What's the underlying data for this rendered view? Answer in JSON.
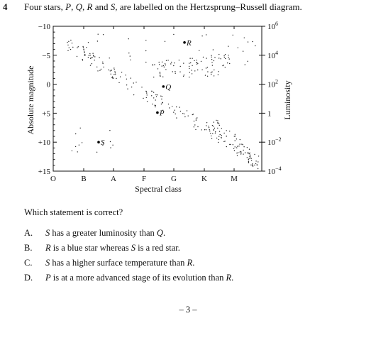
{
  "question": {
    "number": "4",
    "text_html": "Four stars, <i>P</i>, <i>Q</i>, <i>R</i> and <i>S</i>, are labelled on the Hertzsprung–Russell diagram."
  },
  "diagram": {
    "ylabel_left": "Absolute magnitude",
    "ylabel_right": "Luminosity",
    "xlabel": "Spectral class",
    "left_ticks": [
      "−10",
      "−5",
      "0",
      "+5",
      "+10",
      "+15"
    ],
    "right_ticks": [
      {
        "base": "10",
        "exp": "6"
      },
      {
        "base": "10",
        "exp": "4"
      },
      {
        "base": "10",
        "exp": "2"
      },
      {
        "base": "1",
        "exp": ""
      },
      {
        "base": "10",
        "exp": "−2"
      },
      {
        "base": "10",
        "exp": "−4"
      }
    ],
    "spectral_classes": [
      "O",
      "B",
      "A",
      "F",
      "G",
      "K",
      "M"
    ],
    "stars": [
      {
        "label": "P",
        "class_pos": 3.45,
        "magnitude": 4.9
      },
      {
        "label": "Q",
        "class_pos": 3.65,
        "magnitude": 0.4
      },
      {
        "label": "R",
        "class_pos": 4.35,
        "magnitude": -7.2
      },
      {
        "label": "S",
        "class_pos": 1.5,
        "magnitude": 10.0
      }
    ]
  },
  "prompt": "Which statement is correct?",
  "options": [
    {
      "letter": "A.",
      "text_html": "<i>S</i> has a greater luminosity than <i>Q</i>."
    },
    {
      "letter": "B.",
      "text_html": "<i>R</i> is a blue star whereas <i>S</i> is a red star."
    },
    {
      "letter": "C.",
      "text_html": "<i>S</i> has a higher surface temperature than <i>R</i>."
    },
    {
      "letter": "D.",
      "text_html": "<i>P</i> is at a more advanced stage of its evolution than <i>R</i>."
    }
  ],
  "footer": "– 3 –"
}
